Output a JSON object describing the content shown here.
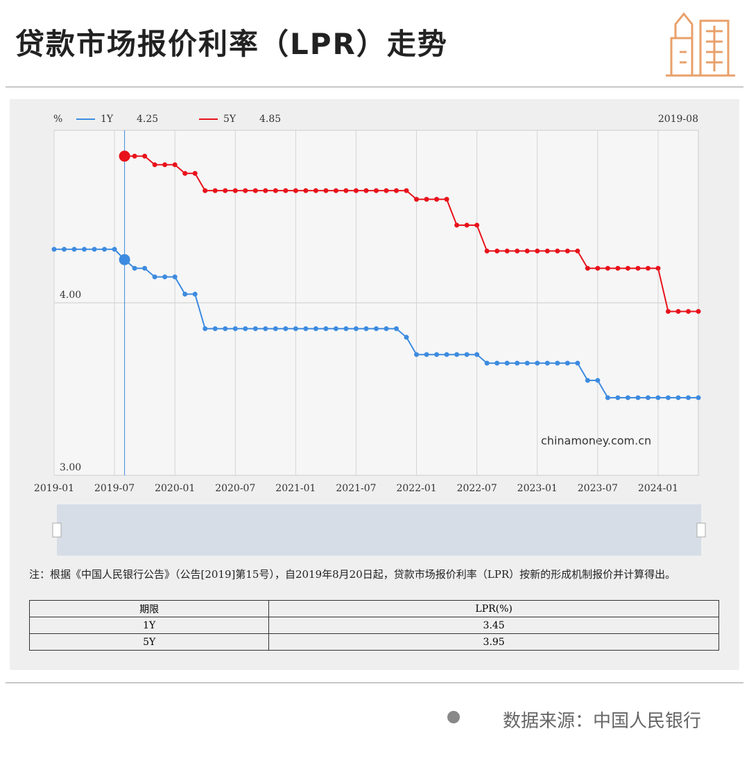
{
  "header": {
    "title": "贷款市场报价利率（LPR）走势"
  },
  "chart_data": {
    "type": "line",
    "units": "%",
    "watermark": "chinamoney.com.cn",
    "x": [
      "2019-01",
      "2019-02",
      "2019-03",
      "2019-04",
      "2019-05",
      "2019-06",
      "2019-07",
      "2019-08",
      "2019-09",
      "2019-10",
      "2019-11",
      "2019-12",
      "2020-01",
      "2020-02",
      "2020-03",
      "2020-04",
      "2020-05",
      "2020-06",
      "2020-07",
      "2020-08",
      "2020-09",
      "2020-10",
      "2020-11",
      "2020-12",
      "2021-01",
      "2021-02",
      "2021-03",
      "2021-04",
      "2021-05",
      "2021-06",
      "2021-07",
      "2021-08",
      "2021-09",
      "2021-10",
      "2021-11",
      "2021-12",
      "2022-01",
      "2022-02",
      "2022-03",
      "2022-04",
      "2022-05",
      "2022-06",
      "2022-07",
      "2022-08",
      "2022-09",
      "2022-10",
      "2022-11",
      "2022-12",
      "2023-01",
      "2023-02",
      "2023-03",
      "2023-04",
      "2023-05",
      "2023-06",
      "2023-07",
      "2023-08",
      "2023-09",
      "2023-10",
      "2023-11",
      "2023-12",
      "2024-01",
      "2024-02",
      "2024-03",
      "2024-04",
      "2024-05"
    ],
    "xticks": [
      "2019-01",
      "2019-07",
      "2020-01",
      "2020-07",
      "2021-01",
      "2021-07",
      "2022-01",
      "2022-07",
      "2023-01",
      "2023-07",
      "2024-01"
    ],
    "series": [
      {
        "name": "1Y",
        "color": "#3d8be0",
        "values": [
          4.31,
          4.31,
          4.31,
          4.31,
          4.31,
          4.31,
          4.31,
          4.25,
          4.2,
          4.2,
          4.15,
          4.15,
          4.15,
          4.05,
          4.05,
          3.85,
          3.85,
          3.85,
          3.85,
          3.85,
          3.85,
          3.85,
          3.85,
          3.85,
          3.85,
          3.85,
          3.85,
          3.85,
          3.85,
          3.85,
          3.85,
          3.85,
          3.85,
          3.85,
          3.85,
          3.8,
          3.7,
          3.7,
          3.7,
          3.7,
          3.7,
          3.7,
          3.7,
          3.65,
          3.65,
          3.65,
          3.65,
          3.65,
          3.65,
          3.65,
          3.65,
          3.65,
          3.65,
          3.55,
          3.55,
          3.45,
          3.45,
          3.45,
          3.45,
          3.45,
          3.45,
          3.45,
          3.45,
          3.45,
          3.45
        ]
      },
      {
        "name": "5Y",
        "color": "#e8121b",
        "values": [
          null,
          null,
          null,
          null,
          null,
          null,
          null,
          4.85,
          4.85,
          4.85,
          4.8,
          4.8,
          4.8,
          4.75,
          4.75,
          4.65,
          4.65,
          4.65,
          4.65,
          4.65,
          4.65,
          4.65,
          4.65,
          4.65,
          4.65,
          4.65,
          4.65,
          4.65,
          4.65,
          4.65,
          4.65,
          4.65,
          4.65,
          4.65,
          4.65,
          4.65,
          4.6,
          4.6,
          4.6,
          4.6,
          4.45,
          4.45,
          4.45,
          4.3,
          4.3,
          4.3,
          4.3,
          4.3,
          4.3,
          4.3,
          4.3,
          4.3,
          4.3,
          4.2,
          4.2,
          4.2,
          4.2,
          4.2,
          4.2,
          4.2,
          4.2,
          3.95,
          3.95,
          3.95,
          3.95
        ]
      }
    ],
    "tooltip": {
      "x": "2019-08",
      "values": [
        4.25,
        4.85
      ]
    },
    "ylim": [
      3,
      5
    ],
    "yticks": [
      {
        "value": 3,
        "label": "3.00"
      },
      {
        "value": 4,
        "label": "4.00"
      }
    ],
    "grid": true
  },
  "note": "注：根据《中国人民银行公告》（公告[2019]第15号），自2019年8月20日起，贷款市场报价利率（LPR）按新的形成机制报价并计算得出。",
  "table": {
    "header": [
      "期限",
      "LPR(%)"
    ],
    "rows": [
      [
        "1Y",
        3.45
      ],
      [
        "5Y",
        3.95
      ]
    ]
  },
  "footer": {
    "source": "数据来源：中国人民银行"
  }
}
